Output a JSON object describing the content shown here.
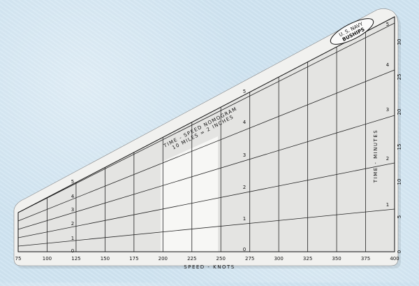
{
  "title": {
    "line1": "TIME - SPEED  NOMOGRAM",
    "line2": "10 MILES = 2 INCHES"
  },
  "badge": {
    "line1": "U. S. NAVY",
    "line2": "BUSHIPS"
  },
  "x_axis": {
    "title": "SPEED - KNOTS",
    "ticks": [
      "75",
      "100",
      "125",
      "150",
      "175",
      "200",
      "225",
      "250",
      "275",
      "300",
      "325",
      "350",
      "375",
      "400"
    ]
  },
  "y_axis": {
    "title": "TIME - MINUTES",
    "ticks": [
      "0",
      "5",
      "10",
      "15",
      "20",
      "25",
      "30"
    ]
  },
  "distance_scales": {
    "left": [
      "0",
      "1",
      "2",
      "3",
      "4",
      "5"
    ],
    "middle": [
      "0",
      "1",
      "2",
      "3",
      "4",
      "5"
    ],
    "right": [
      "1",
      "2",
      "3",
      "4",
      "5"
    ]
  },
  "colors": {
    "card": "#f1f1ef",
    "ink": "#111111",
    "shade": "#e4e4e2",
    "background": "#cfe4f1"
  }
}
